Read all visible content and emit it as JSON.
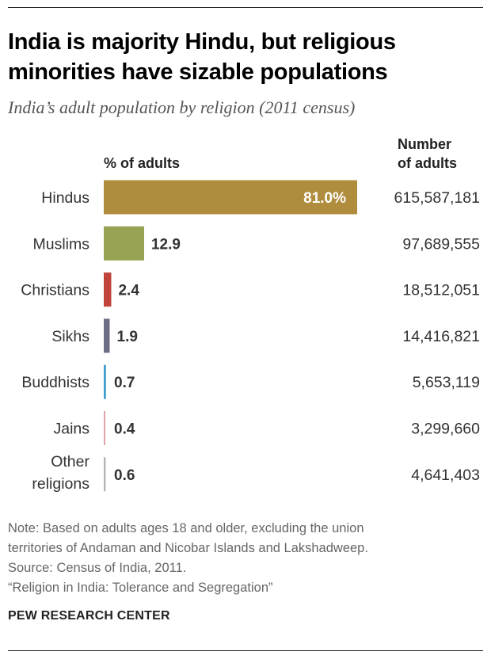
{
  "title": "India is majority Hindu, but religious minorities have sizable populations",
  "subtitle": "India’s adult population by religion (2011 census)",
  "columns": {
    "pct_header": "% of adults",
    "num_header_line1": "Number",
    "num_header_line2": "of adults"
  },
  "chart_data": {
    "type": "bar",
    "orientation": "horizontal",
    "categories": [
      "Hindus",
      "Muslims",
      "Christians",
      "Sikhs",
      "Buddhists",
      "Jains",
      "Other religions"
    ],
    "values": [
      81.0,
      12.9,
      2.4,
      1.9,
      0.7,
      0.4,
      0.6
    ],
    "value_labels": [
      "81.0%",
      "12.9",
      "2.4",
      "1.9",
      "0.7",
      "0.4",
      "0.6"
    ],
    "counts": [
      "615,587,181",
      "97,689,555",
      "18,512,051",
      "14,416,821",
      "5,653,119",
      "3,299,660",
      "4,641,403"
    ],
    "colors": [
      "#b08d3c",
      "#97a352",
      "#c0443a",
      "#6d6d85",
      "#3c9ed0",
      "#e0a3a8",
      "#b3b3b3"
    ],
    "xlim": [
      0,
      81.0
    ],
    "grid": false,
    "legend": "none"
  },
  "notes": [
    "Note: Based on adults ages 18 and older, excluding the union",
    "territories of Andaman and Nicobar Islands and Lakshadweep.",
    "Source: Census of India, 2011.",
    "“Religion in India: Tolerance and Segregation”"
  ],
  "brand": "PEW RESEARCH CENTER"
}
